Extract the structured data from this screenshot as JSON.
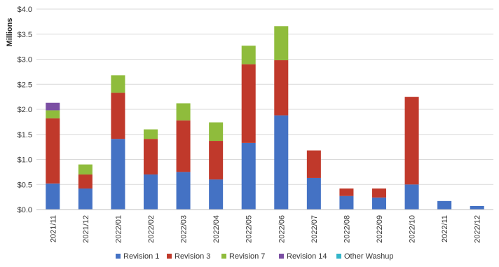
{
  "chart_data": {
    "type": "bar",
    "stacked": true,
    "title": "",
    "xlabel": "",
    "ylabel": "Millions",
    "ylim": [
      0,
      4.0
    ],
    "yticks": [
      "$0.0",
      "$0.5",
      "$1.0",
      "$1.5",
      "$2.0",
      "$2.5",
      "$3.0",
      "$3.5",
      "$4.0"
    ],
    "grid": true,
    "legend_position": "bottom",
    "categories": [
      "2021/11",
      "2021/12",
      "2022/01",
      "2022/02",
      "2022/03",
      "2022/04",
      "2022/05",
      "2022/06",
      "2022/07",
      "2022/08",
      "2022/09",
      "2022/10",
      "2022/11",
      "2022/12"
    ],
    "series": [
      {
        "name": "Revision 1",
        "color": "#4472c4",
        "values": [
          0.52,
          0.42,
          1.41,
          0.7,
          0.75,
          0.6,
          1.33,
          1.88,
          0.63,
          0.27,
          0.24,
          0.5,
          0.17,
          0.07
        ]
      },
      {
        "name": "Revision 3",
        "color": "#c0392b",
        "values": [
          1.3,
          0.28,
          0.92,
          0.71,
          1.03,
          0.77,
          1.57,
          1.1,
          0.55,
          0.15,
          0.18,
          1.75,
          0.0,
          0.0
        ]
      },
      {
        "name": "Revision 7",
        "color": "#8fbc3c",
        "values": [
          0.16,
          0.2,
          0.35,
          0.19,
          0.34,
          0.37,
          0.37,
          0.68,
          0.0,
          0.0,
          0.0,
          0.0,
          0.0,
          0.0
        ]
      },
      {
        "name": "Revision 14",
        "color": "#7b4fa3",
        "values": [
          0.15,
          0,
          0,
          0,
          0,
          0,
          0,
          0,
          0,
          0,
          0,
          0,
          0,
          0
        ]
      },
      {
        "name": "Other Washup",
        "color": "#33b5c9",
        "values": [
          0,
          0,
          0,
          0,
          0,
          0,
          0,
          0,
          0,
          0,
          0,
          0,
          0,
          0
        ]
      }
    ]
  }
}
